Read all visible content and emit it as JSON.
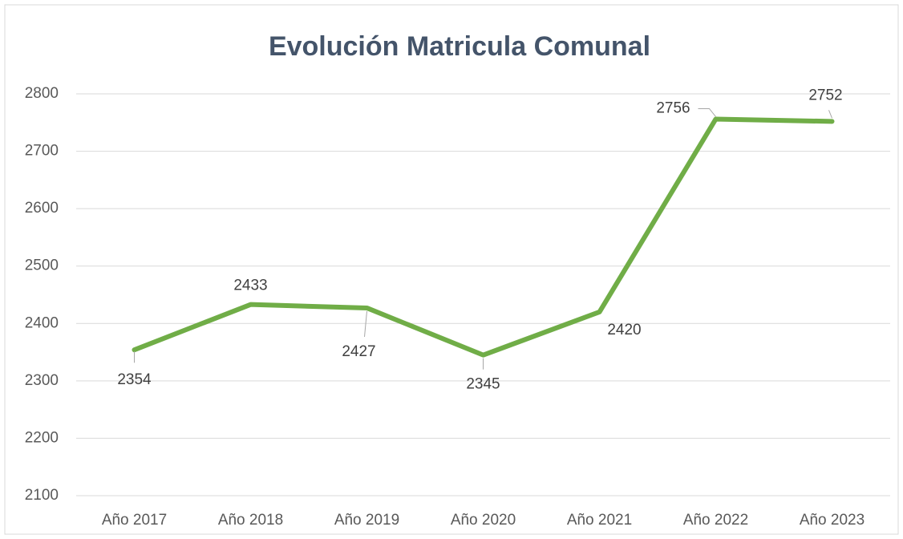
{
  "chart_data": {
    "type": "line",
    "title": "Evolución Matricula Comunal",
    "categories": [
      "Año 2017",
      "Año 2018",
      "Año 2019",
      "Año 2020",
      "Año 2021",
      "Año 2022",
      "Año 2023"
    ],
    "series": [
      {
        "name": "Matricula",
        "color": "#70ad47",
        "values": [
          2354,
          2433,
          2427,
          2345,
          2420,
          2756,
          2752
        ]
      }
    ],
    "ylim": [
      2100,
      2800
    ],
    "yticks": [
      2100,
      2200,
      2300,
      2400,
      2500,
      2600,
      2700,
      2800
    ],
    "grid": true
  }
}
